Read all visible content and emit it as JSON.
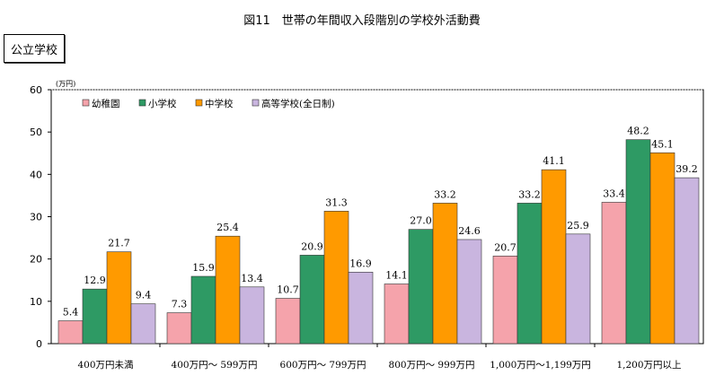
{
  "chart_data": {
    "type": "bar",
    "title": "図11　世帯の年間収入段階別の学校外活動費",
    "panel_label": "公立学校",
    "unit": "(万円)",
    "ylim": [
      0,
      60
    ],
    "yticks": [
      0,
      10,
      20,
      30,
      40,
      50,
      60
    ],
    "grid": false,
    "legend_placement": "top-left",
    "categories": [
      "400万円未満",
      "400万円～ 599万円",
      "600万円～ 799万円",
      "800万円～ 999万円",
      "1,000万円～1,199万円",
      "1,200万円以上"
    ],
    "series": [
      {
        "name": "幼稚園",
        "color": "#f5a3ab",
        "values": [
          5.4,
          7.3,
          10.7,
          14.1,
          20.7,
          33.4
        ]
      },
      {
        "name": "小学校",
        "color": "#2e9a64",
        "values": [
          12.9,
          15.9,
          20.9,
          27.0,
          33.2,
          48.2
        ]
      },
      {
        "name": "中学校",
        "color": "#ff9a00",
        "values": [
          21.7,
          25.4,
          31.3,
          33.2,
          41.1,
          45.1
        ]
      },
      {
        "name": "高等学校(全日制)",
        "color": "#c9b5df",
        "values": [
          9.4,
          13.4,
          16.9,
          24.6,
          25.9,
          39.2
        ]
      }
    ]
  }
}
